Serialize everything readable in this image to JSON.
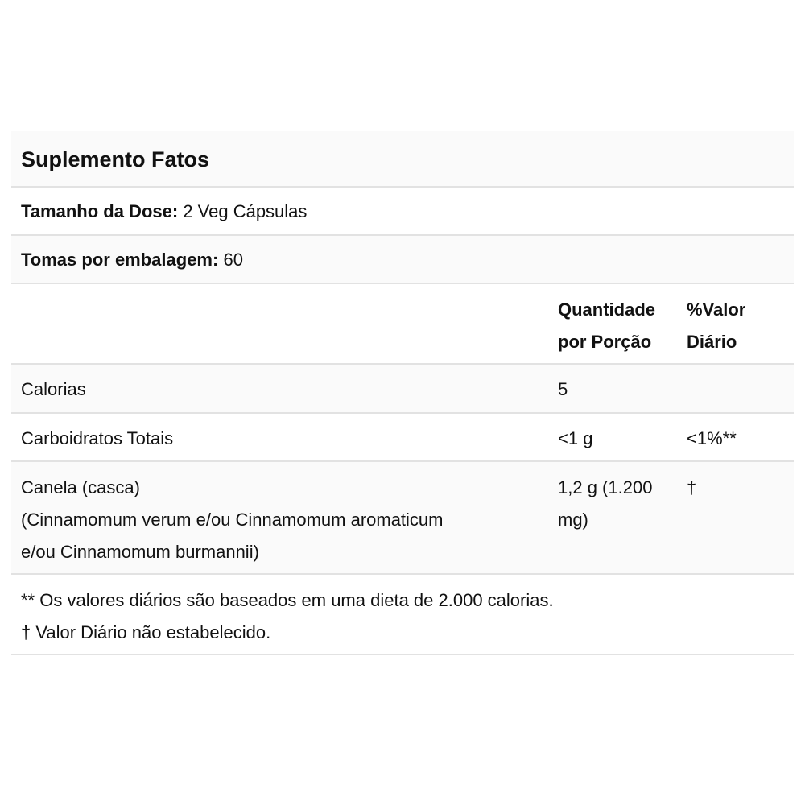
{
  "title": "Suplemento Fatos",
  "serving_size": {
    "label": "Tamanho da Dose:",
    "value": "2 Veg Cápsulas"
  },
  "servings_per_container": {
    "label": "Tomas por embalagem:",
    "value": "60"
  },
  "header": {
    "amount_line1": "Quantidade",
    "amount_line2": "por Porção",
    "dv_line1": "%Valor",
    "dv_line2": "Diário"
  },
  "rows": [
    {
      "name": "Calorias",
      "amount": "5",
      "dv": ""
    },
    {
      "name": "Carboidratos Totais",
      "amount": "<1 g",
      "dv": "<1%**"
    },
    {
      "name_line1": "Canela (casca)",
      "name_line2": "(Cinnamomum verum e/ou Cinnamomum aromaticum",
      "name_line3": "e/ou Cinnamomum burmannii)",
      "amount_line1": "1,2 g (1.200",
      "amount_line2": "mg)",
      "dv": "†"
    }
  ],
  "footnotes": [
    "** Os valores diários são baseados em uma dieta de 2.000 calorias.",
    "† Valor Diário não estabelecido."
  ]
}
